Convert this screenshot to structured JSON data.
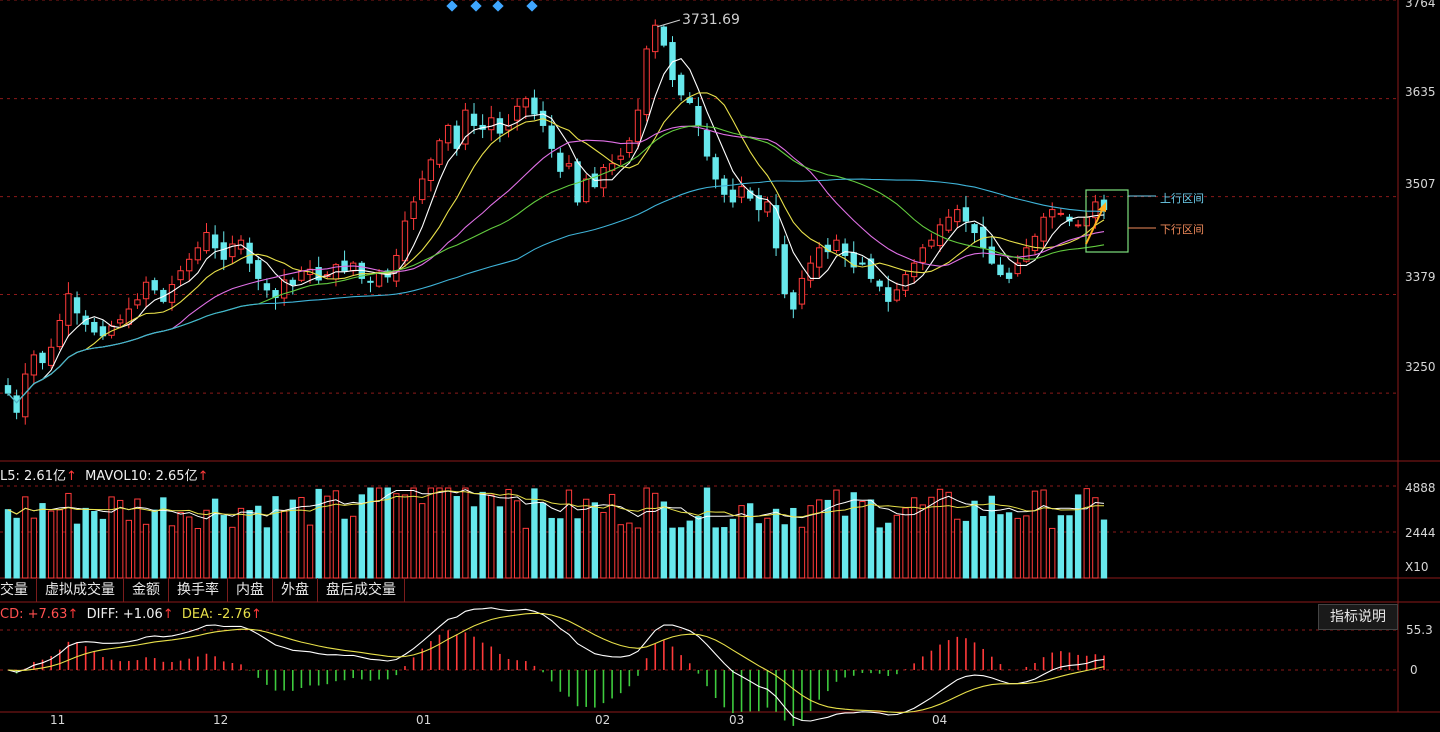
{
  "colors": {
    "up": "#ff3a3a",
    "down": "#67e8ec",
    "grid": "#8c1a1a",
    "ma5": "#ffffff",
    "ma10": "#e8e04a",
    "ma20": "#e070e6",
    "ma30": "#63cc3f",
    "ma60": "#3fb3d8"
  },
  "top_markers": [
    "diamond-icon",
    "diamond-icon",
    "diamond-icon",
    "diamond-icon"
  ],
  "price": {
    "high_label": "3731.69",
    "axis_ticks": [
      "3764",
      "3635",
      "3507",
      "3379",
      "3250"
    ],
    "channel_upper_label": "上行区间",
    "channel_lower_label": "下行区间"
  },
  "volume": {
    "legend_vol5_label": "L5: 2.61亿",
    "legend_mavol10_label": "MAVOL10: 2.65亿",
    "axis_ticks": [
      "4888",
      "2444"
    ],
    "unit": "X10"
  },
  "tabs": [
    "交量",
    "虚拟成交量",
    "金额",
    "换手率",
    "内盘",
    "外盘",
    "盘后成交量"
  ],
  "macd": {
    "legend_macd_label": "CD: +7.63",
    "legend_diff_label": "DIFF: +1.06",
    "legend_dea_label": "DEA: -2.76",
    "axis_ticks": [
      "55.3",
      "0"
    ],
    "explain_button": "指标说明"
  },
  "x_ticks": [
    "11",
    "12",
    "01",
    "02",
    "03",
    "04"
  ],
  "chart_data": {
    "type": "candlestick",
    "y_range": [
      3160,
      3764
    ],
    "x_categories_months": [
      "11",
      "12",
      "01",
      "02",
      "03",
      "04"
    ],
    "closes": [
      3250,
      3225,
      3275,
      3300,
      3290,
      3310,
      3345,
      3380,
      3355,
      3340,
      3330,
      3325,
      3338,
      3346,
      3360,
      3372,
      3395,
      3385,
      3370,
      3392,
      3410,
      3425,
      3440,
      3460,
      3440,
      3425,
      3445,
      3450,
      3420,
      3400,
      3385,
      3375,
      3398,
      3392,
      3410,
      3412,
      3398,
      3405,
      3418,
      3410,
      3420,
      3400,
      3395,
      3408,
      3402,
      3430,
      3475,
      3500,
      3530,
      3555,
      3580,
      3600,
      3570,
      3620,
      3600,
      3595,
      3610,
      3590,
      3600,
      3625,
      3635,
      3615,
      3600,
      3570,
      3540,
      3550,
      3500,
      3530,
      3520,
      3545,
      3550,
      3560,
      3580,
      3620,
      3700,
      3731,
      3705,
      3660,
      3640,
      3630,
      3600,
      3560,
      3530,
      3510,
      3500,
      3520,
      3505,
      3490,
      3500,
      3440,
      3380,
      3360,
      3400,
      3420,
      3440,
      3435,
      3450,
      3430,
      3415,
      3420,
      3400,
      3390,
      3370,
      3385,
      3405,
      3420,
      3440,
      3450,
      3470,
      3480,
      3490,
      3475,
      3460,
      3440,
      3420,
      3405,
      3400,
      3420,
      3440,
      3455,
      3480,
      3490,
      3485,
      3475,
      3470,
      3480,
      3500,
      3490
    ]
  }
}
